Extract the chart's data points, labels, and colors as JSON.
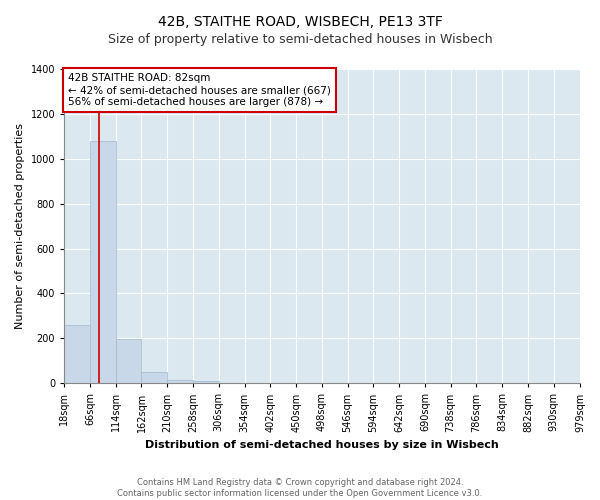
{
  "title": "42B, STAITHE ROAD, WISBECH, PE13 3TF",
  "subtitle": "Size of property relative to semi-detached houses in Wisbech",
  "xlabel": "Distribution of semi-detached houses by size in Wisbech",
  "ylabel": "Number of semi-detached properties",
  "bin_labels": [
    "18sqm",
    "66sqm",
    "114sqm",
    "162sqm",
    "210sqm",
    "258sqm",
    "306sqm",
    "354sqm",
    "402sqm",
    "450sqm",
    "498sqm",
    "546sqm",
    "594sqm",
    "642sqm",
    "690sqm",
    "738sqm",
    "786sqm",
    "834sqm",
    "882sqm",
    "930sqm",
    "979sqm"
  ],
  "bin_edges": [
    18,
    66,
    114,
    162,
    210,
    258,
    306,
    354,
    402,
    450,
    498,
    546,
    594,
    642,
    690,
    738,
    786,
    834,
    882,
    930,
    979
  ],
  "bar_heights": [
    260,
    1080,
    195,
    48,
    14,
    10,
    0,
    0,
    0,
    0,
    0,
    0,
    0,
    0,
    0,
    0,
    0,
    0,
    0,
    0
  ],
  "bar_color": "#c8d8e8",
  "bar_edge_color": "#a0b8cc",
  "property_size": 82,
  "property_line_color": "#cc0000",
  "annotation_text": "42B STAITHE ROAD: 82sqm\n← 42% of semi-detached houses are smaller (667)\n56% of semi-detached houses are larger (878) →",
  "annotation_box_color": "#ffffff",
  "annotation_box_edge": "#cc0000",
  "ylim": [
    0,
    1400
  ],
  "yticks": [
    0,
    200,
    400,
    600,
    800,
    1000,
    1200,
    1400
  ],
  "footer_line1": "Contains HM Land Registry data © Crown copyright and database right 2024.",
  "footer_line2": "Contains public sector information licensed under the Open Government Licence v3.0.",
  "plot_bg_color": "#dce8f0",
  "title_fontsize": 10,
  "subtitle_fontsize": 9,
  "axis_label_fontsize": 8,
  "tick_fontsize": 7,
  "footer_fontsize": 6
}
